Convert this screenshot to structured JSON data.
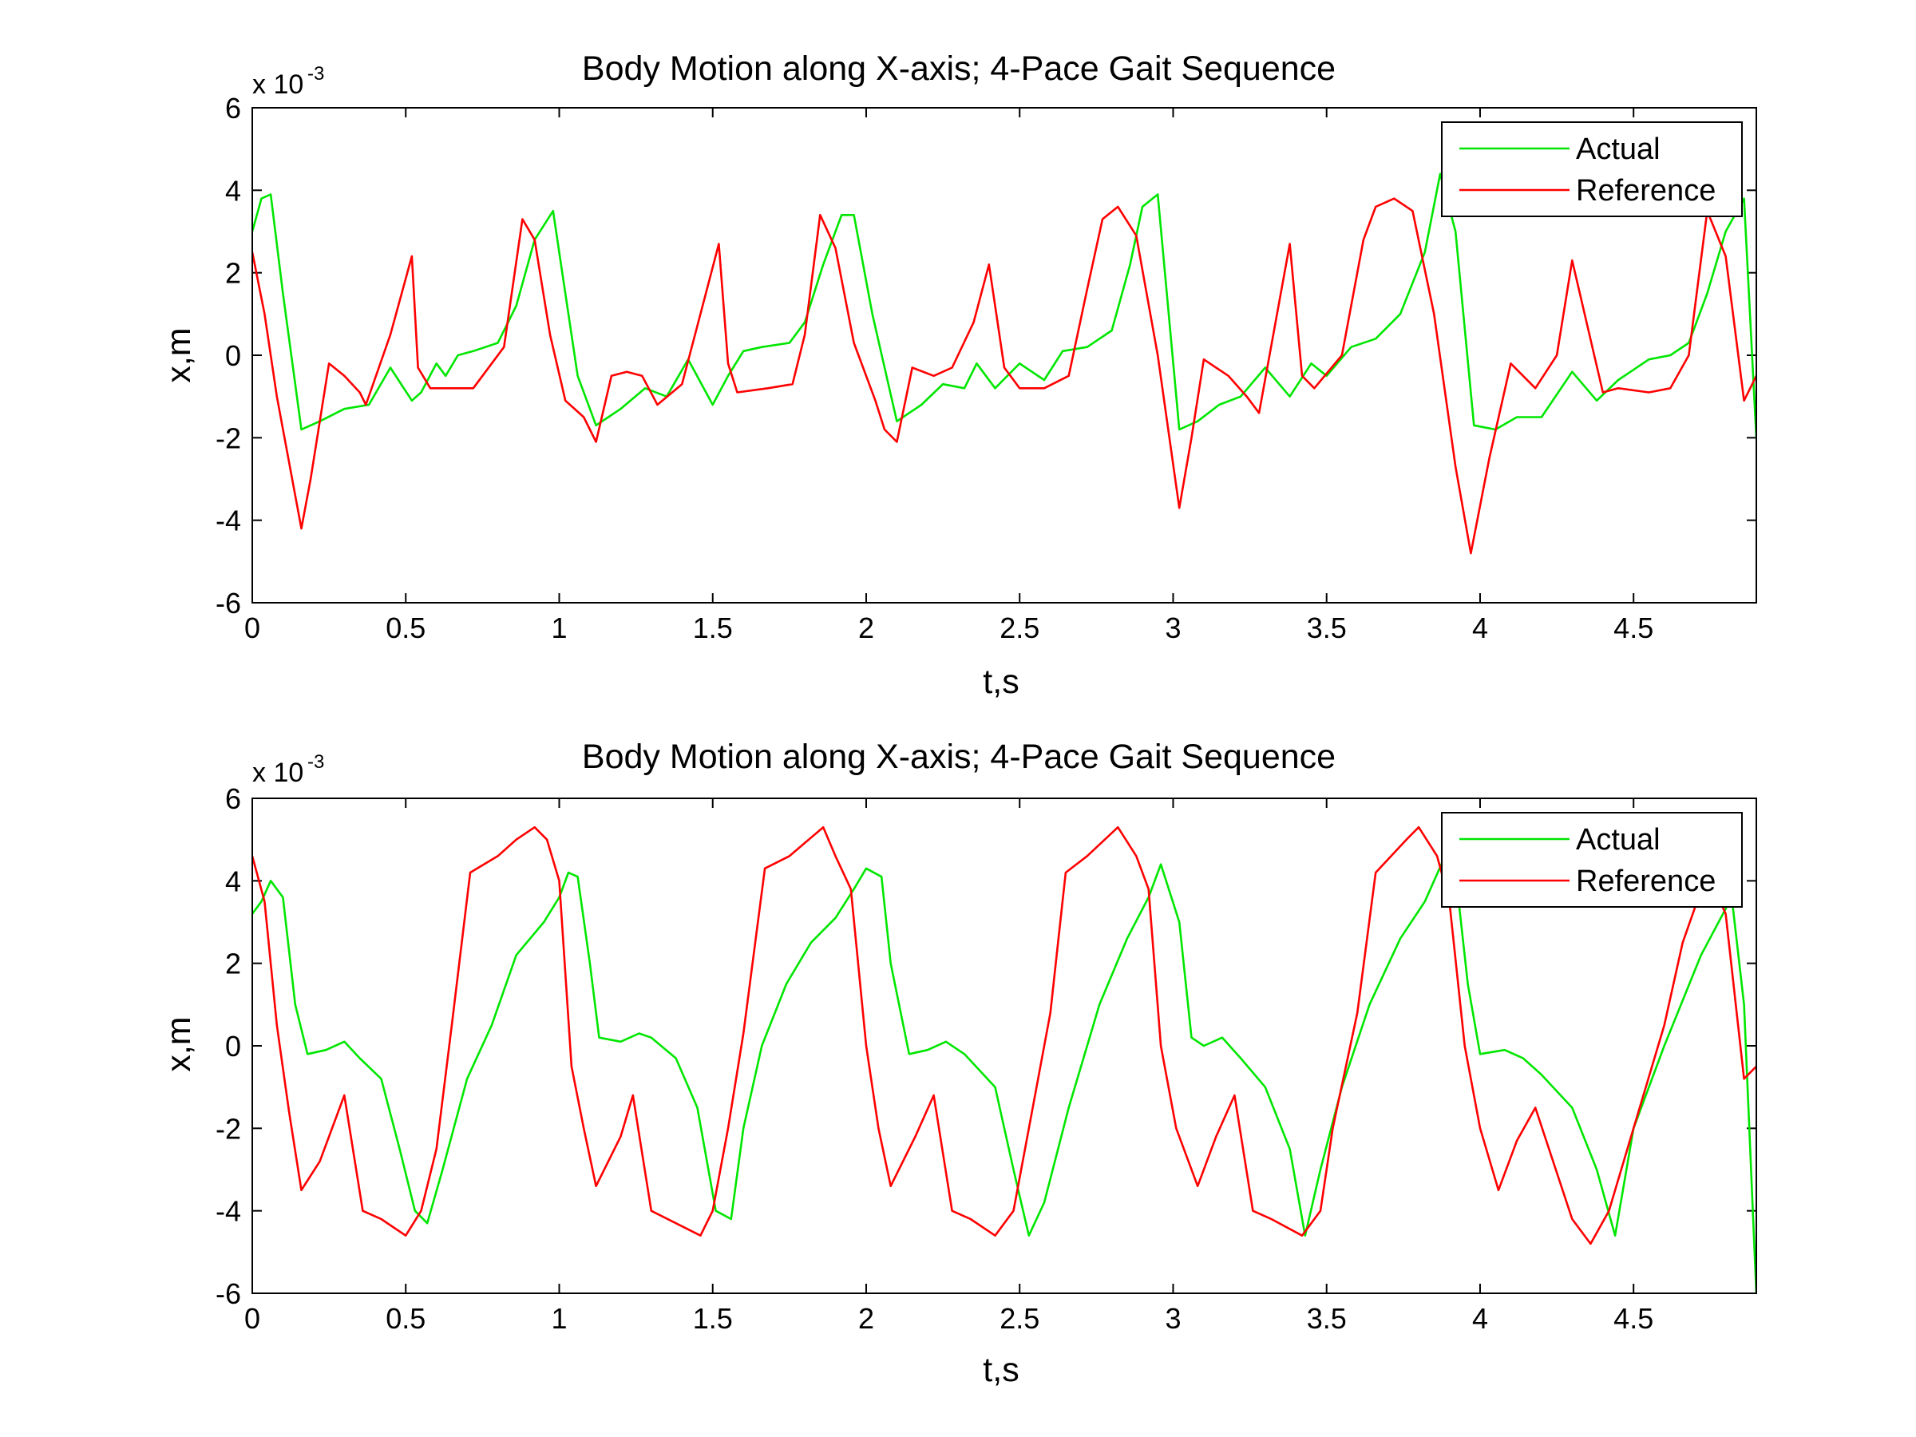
{
  "figure": {
    "background": "#ffffff"
  },
  "chart_data": [
    {
      "type": "line",
      "title": "Body Motion along X-axis; 4-Pace Gait Sequence",
      "xlabel": "t,s",
      "ylabel": "x,m",
      "exponent_label": "x 10",
      "exponent_power": "-3",
      "xlim": [
        0,
        4.9
      ],
      "ylim": [
        -6,
        6
      ],
      "xticks": [
        "0",
        "0.5",
        "1",
        "1.5",
        "2",
        "2.5",
        "3",
        "3.5",
        "4",
        "4.5"
      ],
      "xtick_values": [
        0,
        0.5,
        1,
        1.5,
        2,
        2.5,
        3,
        3.5,
        4,
        4.5
      ],
      "yticks": [
        "-6",
        "-4",
        "-2",
        "0",
        "2",
        "4",
        "6"
      ],
      "ytick_values": [
        -6,
        -4,
        -2,
        0,
        2,
        4,
        6
      ],
      "grid": false,
      "legend_position": "top-right",
      "series": [
        {
          "name": "Actual",
          "color": "#00e600",
          "x": [
            0,
            0.03,
            0.06,
            0.1,
            0.16,
            0.22,
            0.3,
            0.38,
            0.45,
            0.52,
            0.55,
            0.6,
            0.63,
            0.67,
            0.72,
            0.8,
            0.86,
            0.92,
            0.98,
            1.01,
            1.06,
            1.12,
            1.2,
            1.28,
            1.35,
            1.42,
            1.5,
            1.55,
            1.6,
            1.66,
            1.75,
            1.8,
            1.86,
            1.92,
            1.96,
            2.02,
            2.1,
            2.18,
            2.25,
            2.32,
            2.36,
            2.42,
            2.5,
            2.58,
            2.64,
            2.72,
            2.8,
            2.86,
            2.9,
            2.95,
            3.02,
            3.08,
            3.15,
            3.22,
            3.3,
            3.38,
            3.45,
            3.5,
            3.58,
            3.66,
            3.74,
            3.82,
            3.87,
            3.92,
            3.98,
            4.05,
            4.12,
            4.2,
            4.3,
            4.38,
            4.45,
            4.55,
            4.62,
            4.68,
            4.74,
            4.8,
            4.86,
            4.9
          ],
          "y": [
            3.0,
            3.8,
            3.9,
            1.5,
            -1.8,
            -1.6,
            -1.3,
            -1.2,
            -0.3,
            -1.1,
            -0.9,
            -0.2,
            -0.5,
            0.0,
            0.1,
            0.3,
            1.2,
            2.8,
            3.5,
            2.0,
            -0.5,
            -1.7,
            -1.3,
            -0.8,
            -1.0,
            -0.1,
            -1.2,
            -0.5,
            0.1,
            0.2,
            0.3,
            0.8,
            2.2,
            3.4,
            3.4,
            1.0,
            -1.6,
            -1.2,
            -0.7,
            -0.8,
            -0.2,
            -0.8,
            -0.2,
            -0.6,
            0.1,
            0.2,
            0.6,
            2.2,
            3.6,
            3.9,
            -1.8,
            -1.6,
            -1.2,
            -1.0,
            -0.3,
            -1.0,
            -0.2,
            -0.5,
            0.2,
            0.4,
            1.0,
            2.5,
            4.4,
            3.0,
            -1.7,
            -1.8,
            -1.5,
            -1.5,
            -0.4,
            -1.1,
            -0.6,
            -0.1,
            0.0,
            0.3,
            1.5,
            3.0,
            3.8,
            -2.0
          ]
        },
        {
          "name": "Reference",
          "color": "#ff0000",
          "x": [
            0,
            0.04,
            0.08,
            0.16,
            0.19,
            0.25,
            0.3,
            0.35,
            0.37,
            0.45,
            0.52,
            0.54,
            0.58,
            0.65,
            0.72,
            0.82,
            0.88,
            0.92,
            0.97,
            1.02,
            1.08,
            1.12,
            1.17,
            1.22,
            1.27,
            1.32,
            1.4,
            1.46,
            1.52,
            1.55,
            1.58,
            1.68,
            1.76,
            1.8,
            1.85,
            1.9,
            1.96,
            2.03,
            2.06,
            2.1,
            2.15,
            2.22,
            2.28,
            2.35,
            2.4,
            2.45,
            2.5,
            2.58,
            2.66,
            2.72,
            2.77,
            2.82,
            2.88,
            2.95,
            3.02,
            3.06,
            3.1,
            3.18,
            3.24,
            3.28,
            3.38,
            3.42,
            3.46,
            3.55,
            3.62,
            3.66,
            3.72,
            3.78,
            3.85,
            3.92,
            3.97,
            4.03,
            4.1,
            4.18,
            4.25,
            4.3,
            4.4,
            4.45,
            4.55,
            4.62,
            4.68,
            4.74,
            4.8,
            4.86,
            4.9
          ],
          "y": [
            2.5,
            1.0,
            -1.0,
            -4.2,
            -3.0,
            -0.2,
            -0.5,
            -0.9,
            -1.2,
            0.5,
            2.4,
            -0.3,
            -0.8,
            -0.8,
            -0.8,
            0.2,
            3.3,
            2.8,
            0.5,
            -1.1,
            -1.5,
            -2.1,
            -0.5,
            -0.4,
            -0.5,
            -1.2,
            -0.7,
            1.0,
            2.7,
            -0.2,
            -0.9,
            -0.8,
            -0.7,
            0.5,
            3.4,
            2.6,
            0.3,
            -1.1,
            -1.8,
            -2.1,
            -0.3,
            -0.5,
            -0.3,
            0.8,
            2.2,
            -0.3,
            -0.8,
            -0.8,
            -0.5,
            1.6,
            3.3,
            3.6,
            2.9,
            0.0,
            -3.7,
            -2.0,
            -0.1,
            -0.5,
            -1.0,
            -1.4,
            2.7,
            -0.5,
            -0.8,
            0.0,
            2.8,
            3.6,
            3.8,
            3.5,
            1.0,
            -2.7,
            -4.8,
            -2.5,
            -0.2,
            -0.8,
            0.0,
            2.3,
            -0.9,
            -0.8,
            -0.9,
            -0.8,
            0.0,
            3.5,
            2.4,
            -1.1,
            -0.5
          ]
        }
      ]
    },
    {
      "type": "line",
      "title": "Body Motion along X-axis; 4-Pace Gait Sequence",
      "xlabel": "t,s",
      "ylabel": "x,m",
      "exponent_label": "x 10",
      "exponent_power": "-3",
      "xlim": [
        0,
        4.9
      ],
      "ylim": [
        -6,
        6
      ],
      "xticks": [
        "0",
        "0.5",
        "1",
        "1.5",
        "2",
        "2.5",
        "3",
        "3.5",
        "4",
        "4.5"
      ],
      "xtick_values": [
        0,
        0.5,
        1,
        1.5,
        2,
        2.5,
        3,
        3.5,
        4,
        4.5
      ],
      "yticks": [
        "-6",
        "-4",
        "-2",
        "0",
        "2",
        "4",
        "6"
      ],
      "ytick_values": [
        -6,
        -4,
        -2,
        0,
        2,
        4,
        6
      ],
      "grid": false,
      "legend_position": "top-right",
      "series": [
        {
          "name": "Actual",
          "color": "#00e600",
          "x": [
            0,
            0.03,
            0.06,
            0.1,
            0.14,
            0.18,
            0.24,
            0.3,
            0.35,
            0.42,
            0.48,
            0.53,
            0.57,
            0.62,
            0.7,
            0.78,
            0.86,
            0.95,
            1.0,
            1.03,
            1.06,
            1.1,
            1.13,
            1.2,
            1.26,
            1.3,
            1.38,
            1.45,
            1.51,
            1.56,
            1.6,
            1.66,
            1.74,
            1.82,
            1.9,
            1.96,
            2.0,
            2.05,
            2.08,
            2.14,
            2.2,
            2.26,
            2.32,
            2.42,
            2.48,
            2.53,
            2.58,
            2.66,
            2.76,
            2.85,
            2.92,
            2.96,
            3.02,
            3.06,
            3.1,
            3.16,
            3.22,
            3.3,
            3.38,
            3.43,
            3.48,
            3.55,
            3.64,
            3.74,
            3.82,
            3.88,
            3.92,
            3.96,
            4.0,
            4.08,
            4.14,
            4.2,
            4.3,
            4.38,
            4.44,
            4.5,
            4.6,
            4.72,
            4.82,
            4.86,
            4.9
          ],
          "y": [
            3.2,
            3.5,
            4.0,
            3.6,
            1.0,
            -0.2,
            -0.1,
            0.1,
            -0.3,
            -0.8,
            -2.5,
            -4.0,
            -4.3,
            -3.0,
            -0.8,
            0.5,
            2.2,
            3.0,
            3.6,
            4.2,
            4.1,
            2.0,
            0.2,
            0.1,
            0.3,
            0.2,
            -0.3,
            -1.5,
            -4.0,
            -4.2,
            -2.0,
            0.0,
            1.5,
            2.5,
            3.1,
            3.8,
            4.3,
            4.1,
            2.0,
            -0.2,
            -0.1,
            0.1,
            -0.2,
            -1.0,
            -3.0,
            -4.6,
            -3.8,
            -1.5,
            1.0,
            2.6,
            3.6,
            4.4,
            3.0,
            0.2,
            0.0,
            0.2,
            -0.3,
            -1.0,
            -2.5,
            -4.6,
            -3.0,
            -1.0,
            1.0,
            2.6,
            3.5,
            4.5,
            4.2,
            1.5,
            -0.2,
            -0.1,
            -0.3,
            -0.7,
            -1.5,
            -3.0,
            -4.6,
            -2.0,
            0.0,
            2.2,
            3.6,
            1.0,
            -6.0
          ]
        },
        {
          "name": "Reference",
          "color": "#ff0000",
          "x": [
            0,
            0.04,
            0.08,
            0.12,
            0.16,
            0.22,
            0.3,
            0.36,
            0.42,
            0.5,
            0.55,
            0.6,
            0.65,
            0.71,
            0.8,
            0.86,
            0.92,
            0.96,
            1.0,
            1.04,
            1.08,
            1.12,
            1.2,
            1.24,
            1.3,
            1.38,
            1.46,
            1.5,
            1.55,
            1.6,
            1.67,
            1.75,
            1.86,
            1.9,
            1.95,
            2.0,
            2.04,
            2.08,
            2.16,
            2.22,
            2.28,
            2.34,
            2.42,
            2.48,
            2.53,
            2.6,
            2.65,
            2.72,
            2.82,
            2.88,
            2.92,
            2.96,
            3.01,
            3.08,
            3.14,
            3.2,
            3.26,
            3.32,
            3.42,
            3.48,
            3.52,
            3.6,
            3.66,
            3.76,
            3.8,
            3.86,
            3.9,
            3.95,
            4.0,
            4.06,
            4.12,
            4.18,
            4.3,
            4.36,
            4.42,
            4.5,
            4.6,
            4.66,
            4.74,
            4.8,
            4.86,
            4.9
          ],
          "y": [
            4.6,
            3.5,
            0.5,
            -1.6,
            -3.5,
            -2.8,
            -1.2,
            -4.0,
            -4.2,
            -4.6,
            -4.0,
            -2.5,
            0.5,
            4.2,
            4.6,
            5.0,
            5.3,
            5.0,
            4.0,
            -0.5,
            -2.0,
            -3.4,
            -2.2,
            -1.2,
            -4.0,
            -4.3,
            -4.6,
            -4.0,
            -2.0,
            0.3,
            4.3,
            4.6,
            5.3,
            4.6,
            3.8,
            0.0,
            -2.0,
            -3.4,
            -2.2,
            -1.2,
            -4.0,
            -4.2,
            -4.6,
            -4.0,
            -2.0,
            0.8,
            4.2,
            4.6,
            5.3,
            4.6,
            3.8,
            0.0,
            -2.0,
            -3.4,
            -2.2,
            -1.2,
            -4.0,
            -4.2,
            -4.6,
            -4.0,
            -2.0,
            0.8,
            4.2,
            5.0,
            5.3,
            4.6,
            3.5,
            0.0,
            -2.0,
            -3.5,
            -2.3,
            -1.5,
            -4.2,
            -4.8,
            -4.0,
            -2.0,
            0.5,
            2.5,
            4.2,
            3.2,
            -0.8,
            -0.5
          ]
        }
      ]
    }
  ]
}
